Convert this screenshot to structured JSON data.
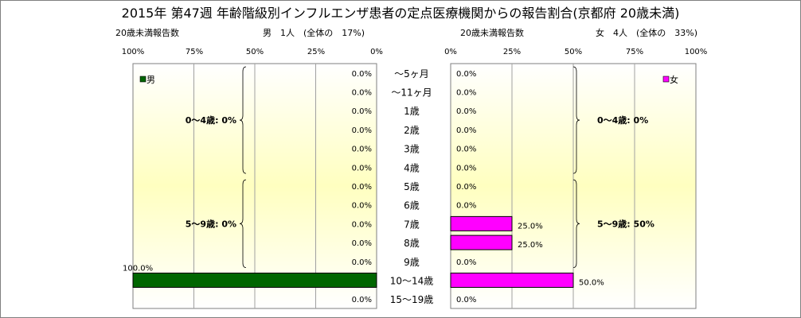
{
  "title": "2015年 第47週 年齢階級別インフルエンザ患者の定点医療機関からの報告割合(京都府 20歳未満)",
  "left_panel": {
    "count_label": "20歳未満報告数",
    "summary": "男　1人　(全体の　17%)"
  },
  "right_panel": {
    "count_label": "20歳未満報告数",
    "summary": "女　4人　(全体の　33%)"
  },
  "colors": {
    "male": "#006600",
    "female": "#ff00ff",
    "plot_gradient_edge": "#ffffff",
    "plot_gradient_center": "#ffffc0"
  },
  "chart_data": [
    {
      "type": "bar",
      "orientation": "horizontal",
      "direction": "right-to-left",
      "categories": [
        "〜5ヶ月",
        "〜11ヶ月",
        "1歳",
        "2歳",
        "3歳",
        "4歳",
        "5歳",
        "6歳",
        "7歳",
        "8歳",
        "9歳",
        "10〜14歳",
        "15〜19歳"
      ],
      "series": [
        {
          "name": "男",
          "color": "#006600",
          "values": [
            0,
            0,
            0,
            0,
            0,
            0,
            0,
            0,
            0,
            0,
            0,
            100,
            0
          ]
        }
      ],
      "value_labels": [
        "0.0%",
        "0.0%",
        "0.0%",
        "0.0%",
        "0.0%",
        "0.0%",
        "0.0%",
        "0.0%",
        "0.0%",
        "0.0%",
        "0.0%",
        "100.0%",
        "0.0%"
      ],
      "xlim": [
        0,
        100
      ],
      "xticks": [
        "100%",
        "75%",
        "50%",
        "25%",
        "0%"
      ],
      "legend": "top-left",
      "grid": true,
      "brackets": [
        {
          "label": "0〜4歳: 0%",
          "from": "〜5ヶ月",
          "to": "4歳"
        },
        {
          "label": "5〜9歳: 0%",
          "from": "5歳",
          "to": "9歳"
        }
      ]
    },
    {
      "type": "bar",
      "orientation": "horizontal",
      "direction": "left-to-right",
      "categories": [
        "〜5ヶ月",
        "〜11ヶ月",
        "1歳",
        "2歳",
        "3歳",
        "4歳",
        "5歳",
        "6歳",
        "7歳",
        "8歳",
        "9歳",
        "10〜14歳",
        "15〜19歳"
      ],
      "series": [
        {
          "name": "女",
          "color": "#ff00ff",
          "values": [
            0,
            0,
            0,
            0,
            0,
            0,
            0,
            0,
            25,
            25,
            0,
            50,
            0
          ]
        }
      ],
      "value_labels": [
        "0.0%",
        "0.0%",
        "0.0%",
        "0.0%",
        "0.0%",
        "0.0%",
        "0.0%",
        "0.0%",
        "25.0%",
        "25.0%",
        "0.0%",
        "50.0%",
        "0.0%"
      ],
      "xlim": [
        0,
        100
      ],
      "xticks": [
        "0%",
        "25%",
        "50%",
        "75%",
        "100%"
      ],
      "legend": "top-right",
      "grid": true,
      "brackets": [
        {
          "label": "0〜4歳: 0%",
          "from": "〜5ヶ月",
          "to": "4歳"
        },
        {
          "label": "5〜9歳: 50%",
          "from": "5歳",
          "to": "9歳"
        }
      ]
    }
  ]
}
